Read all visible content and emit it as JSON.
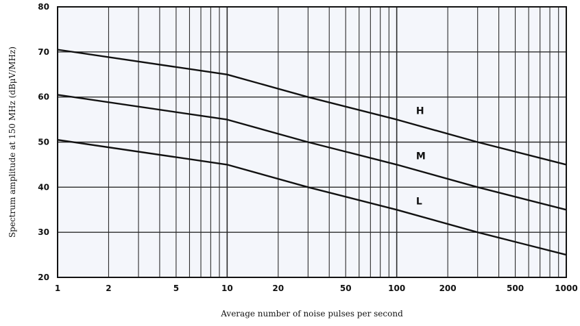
{
  "chart_data": {
    "type": "line",
    "title": "",
    "xlabel": "Average number of noise pulses per second",
    "ylabel": "Spectrum amplitude at 150 MHz (dBμV/MHz)",
    "x_scale": "log",
    "xlim": [
      1,
      1000
    ],
    "ylim": [
      20,
      80
    ],
    "x_ticks": [
      1,
      2,
      5,
      10,
      20,
      50,
      100,
      200,
      500,
      1000
    ],
    "x_tick_labels": [
      "1",
      "2",
      "5",
      "10",
      "20",
      "50",
      "100",
      "200",
      "500",
      "1000"
    ],
    "y_ticks": [
      20,
      30,
      40,
      50,
      60,
      70,
      80
    ],
    "y_tick_labels": [
      "20",
      "30",
      "40",
      "50",
      "60",
      "70",
      "80"
    ],
    "grid": true,
    "legend": "none",
    "series": [
      {
        "name": "H",
        "x": [
          1,
          10,
          30,
          100,
          300,
          1000
        ],
        "y": [
          70.5,
          65,
          60,
          55,
          50,
          45
        ]
      },
      {
        "name": "M",
        "x": [
          1,
          10,
          30,
          100,
          300,
          1000
        ],
        "y": [
          60.5,
          55,
          50,
          45,
          40,
          35
        ]
      },
      {
        "name": "L",
        "x": [
          1,
          10,
          30,
          100,
          300,
          1000
        ],
        "y": [
          50.5,
          45,
          40,
          35,
          30,
          25
        ]
      }
    ],
    "colors": {
      "background": "#f4f6fb",
      "grid": "#2a2a2a",
      "line": "#111111"
    }
  }
}
